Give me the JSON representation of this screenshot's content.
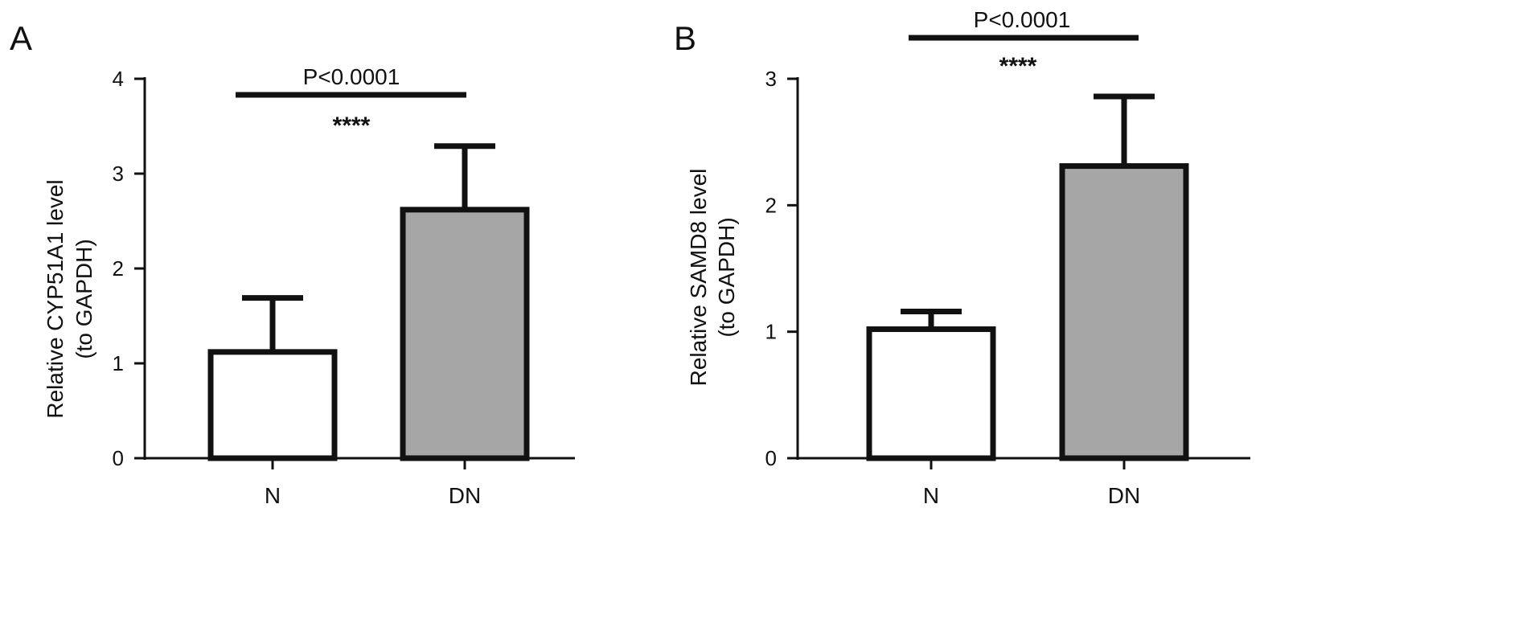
{
  "panels": [
    {
      "letter": "A",
      "ylabel_line1": "Relative CYP51A1 level",
      "ylabel_line2": "(to GAPDH)",
      "significance": {
        "p_text": "P<0.0001",
        "stars": "****"
      }
    },
    {
      "letter": "B",
      "ylabel_line1": "Relative SAMD8 level",
      "ylabel_line2": "(to GAPDH)",
      "significance": {
        "p_text": "P<0.0001",
        "stars": "****"
      }
    }
  ],
  "chart_data": [
    {
      "type": "bar",
      "categories": [
        "N",
        "DN"
      ],
      "values": [
        1.12,
        2.62
      ],
      "error_upper": [
        0.57,
        0.67
      ],
      "bar_colors": [
        "#ffffff",
        "#a6a6a6"
      ],
      "ylabel": "Relative CYP51A1 level (to GAPDH)",
      "ylim": [
        0,
        4
      ],
      "yticks": [
        0,
        1,
        2,
        3,
        4
      ],
      "annotation": "P<0.0001 ****",
      "legend": "none"
    },
    {
      "type": "bar",
      "categories": [
        "N",
        "DN"
      ],
      "values": [
        1.02,
        2.31
      ],
      "error_upper": [
        0.14,
        0.55
      ],
      "bar_colors": [
        "#ffffff",
        "#a6a6a6"
      ],
      "ylabel": "Relative SAMD8 level (to GAPDH)",
      "ylim": [
        0,
        3
      ],
      "yticks": [
        0,
        1,
        2,
        3
      ],
      "annotation": "P<0.0001 ****",
      "legend": "none"
    }
  ]
}
